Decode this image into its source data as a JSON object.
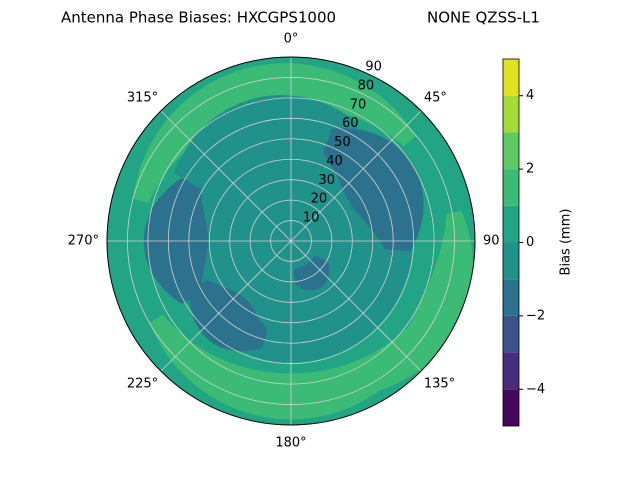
{
  "chart_data": {
    "type": "polar-contour",
    "title": "Antenna Phase Biases: HXCGPS1000",
    "subtitle": "NONE QZSS-L1",
    "rlim": [
      0,
      90
    ],
    "rticks": [
      10,
      20,
      30,
      40,
      50,
      60,
      70,
      80,
      90
    ],
    "thetaticks": [
      {
        "value": 0,
        "label": "0°"
      },
      {
        "value": 45,
        "label": "45°"
      },
      90,
      {
        "value": 135,
        "label": "135°"
      },
      {
        "value": 180,
        "label": "180°"
      },
      {
        "value": 225,
        "label": "225°"
      },
      {
        "value": 270,
        "label": "270°"
      },
      {
        "value": 315,
        "label": "315°"
      }
    ],
    "grid": true,
    "colorbar": {
      "label": "Bias (mm)",
      "levels": [
        -5,
        -4,
        -3,
        -2,
        -1,
        0,
        1,
        2,
        3,
        4,
        5
      ],
      "colors": [
        "#46085c",
        "#472d7b",
        "#3b528b",
        "#2c728e",
        "#21918c",
        "#21a585",
        "#3bbb75",
        "#5ec962",
        "#a5db36",
        "#e0e320"
      ],
      "ticks": [
        {
          "value": -4,
          "label": "−4"
        },
        {
          "value": -2,
          "label": "−2"
        },
        0,
        2,
        4
      ]
    }
  }
}
